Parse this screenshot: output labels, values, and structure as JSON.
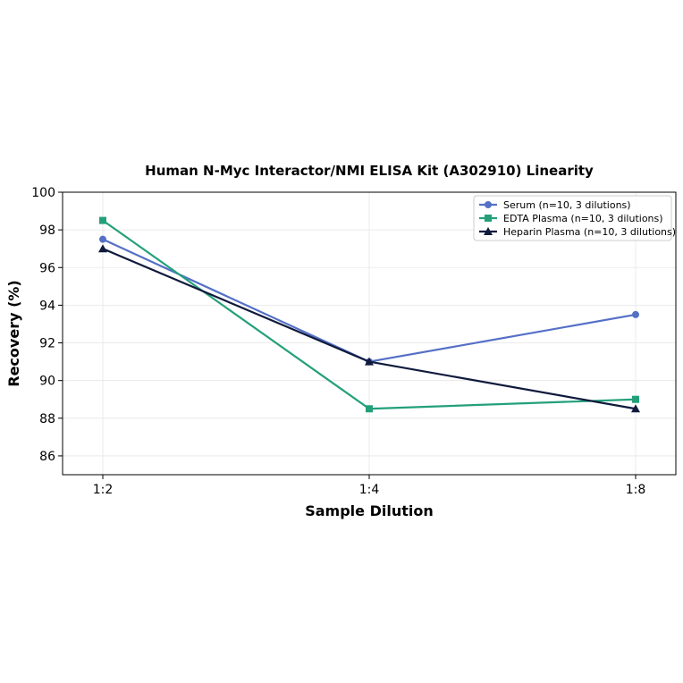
{
  "chart_data": {
    "type": "line",
    "title": "Human N-Myc Interactor/NMI ELISA Kit (A302910) Linearity",
    "xlabel": "Sample Dilution",
    "ylabel": "Recovery (%)",
    "categories": [
      "1:2",
      "1:4",
      "1:8"
    ],
    "ylim": [
      85,
      100
    ],
    "yticks": [
      86,
      88,
      90,
      92,
      94,
      96,
      98,
      100
    ],
    "grid": true,
    "legend_position": "top-right",
    "series": [
      {
        "name": "Serum (n=10, 3 dilutions)",
        "values": [
          97.5,
          91.0,
          93.5
        ],
        "color": "#5470c6",
        "marker": "circle"
      },
      {
        "name": "EDTA Plasma (n=10, 3 dilutions)",
        "values": [
          98.5,
          88.5,
          89.0
        ],
        "color": "#23a07a",
        "marker": "square"
      },
      {
        "name": "Heparin Plasma (n=10, 3 dilutions)",
        "values": [
          97.0,
          91.0,
          88.5
        ],
        "color": "#0f1a3c",
        "marker": "triangle"
      }
    ]
  }
}
